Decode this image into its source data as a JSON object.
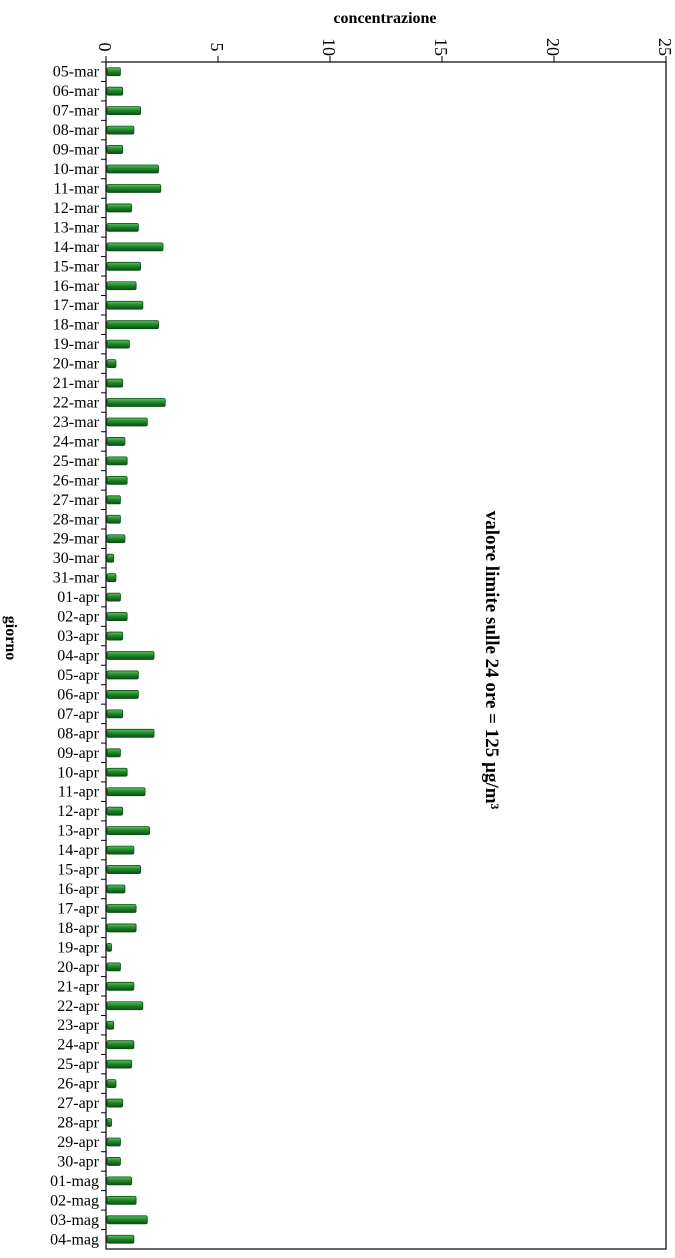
{
  "chart_data": {
    "type": "bar",
    "orientation": "horizontal",
    "title": "",
    "xlabel": "concentrazione",
    "ylabel": "giorno",
    "xlim": [
      0,
      25
    ],
    "xticks": [
      "0",
      "5",
      "10",
      "15",
      "20",
      "25"
    ],
    "grid": false,
    "annotation": "valore limite sulle 24 ore = 125 µg/m³",
    "colors": {
      "bar": "#1f8a2a",
      "bar_edge": "#0d4d14",
      "axis": "#000000"
    },
    "categories": [
      "05-mar",
      "06-mar",
      "07-mar",
      "08-mar",
      "09-mar",
      "10-mar",
      "11-mar",
      "12-mar",
      "13-mar",
      "14-mar",
      "15-mar",
      "16-mar",
      "17-mar",
      "18-mar",
      "19-mar",
      "20-mar",
      "21-mar",
      "22-mar",
      "23-mar",
      "24-mar",
      "25-mar",
      "26-mar",
      "27-mar",
      "28-mar",
      "29-mar",
      "30-mar",
      "31-mar",
      "01-apr",
      "02-apr",
      "03-apr",
      "04-apr",
      "05-apr",
      "06-apr",
      "07-apr",
      "08-apr",
      "09-apr",
      "10-apr",
      "11-apr",
      "12-apr",
      "13-apr",
      "14-apr",
      "15-apr",
      "16-apr",
      "17-apr",
      "18-apr",
      "19-apr",
      "20-apr",
      "21-apr",
      "22-apr",
      "23-apr",
      "24-apr",
      "25-apr",
      "26-apr",
      "27-apr",
      "28-apr",
      "29-apr",
      "30-apr",
      "01-mag",
      "02-mag",
      "03-mag",
      "04-mag"
    ],
    "values": [
      0.6,
      0.7,
      1.5,
      1.2,
      0.7,
      2.3,
      2.4,
      1.1,
      1.4,
      2.5,
      1.5,
      1.3,
      1.6,
      2.3,
      1.0,
      0.4,
      0.7,
      2.6,
      1.8,
      0.8,
      0.9,
      0.9,
      0.6,
      0.6,
      0.8,
      0.3,
      0.4,
      0.6,
      0.9,
      0.7,
      2.1,
      1.4,
      1.4,
      0.7,
      2.1,
      0.6,
      0.9,
      1.7,
      0.7,
      1.9,
      1.2,
      1.5,
      0.8,
      1.3,
      1.3,
      0.2,
      0.6,
      1.2,
      1.6,
      0.3,
      1.2,
      1.1,
      0.4,
      0.7,
      0.2,
      0.6,
      0.6,
      1.1,
      1.3,
      1.8,
      1.2
    ]
  }
}
